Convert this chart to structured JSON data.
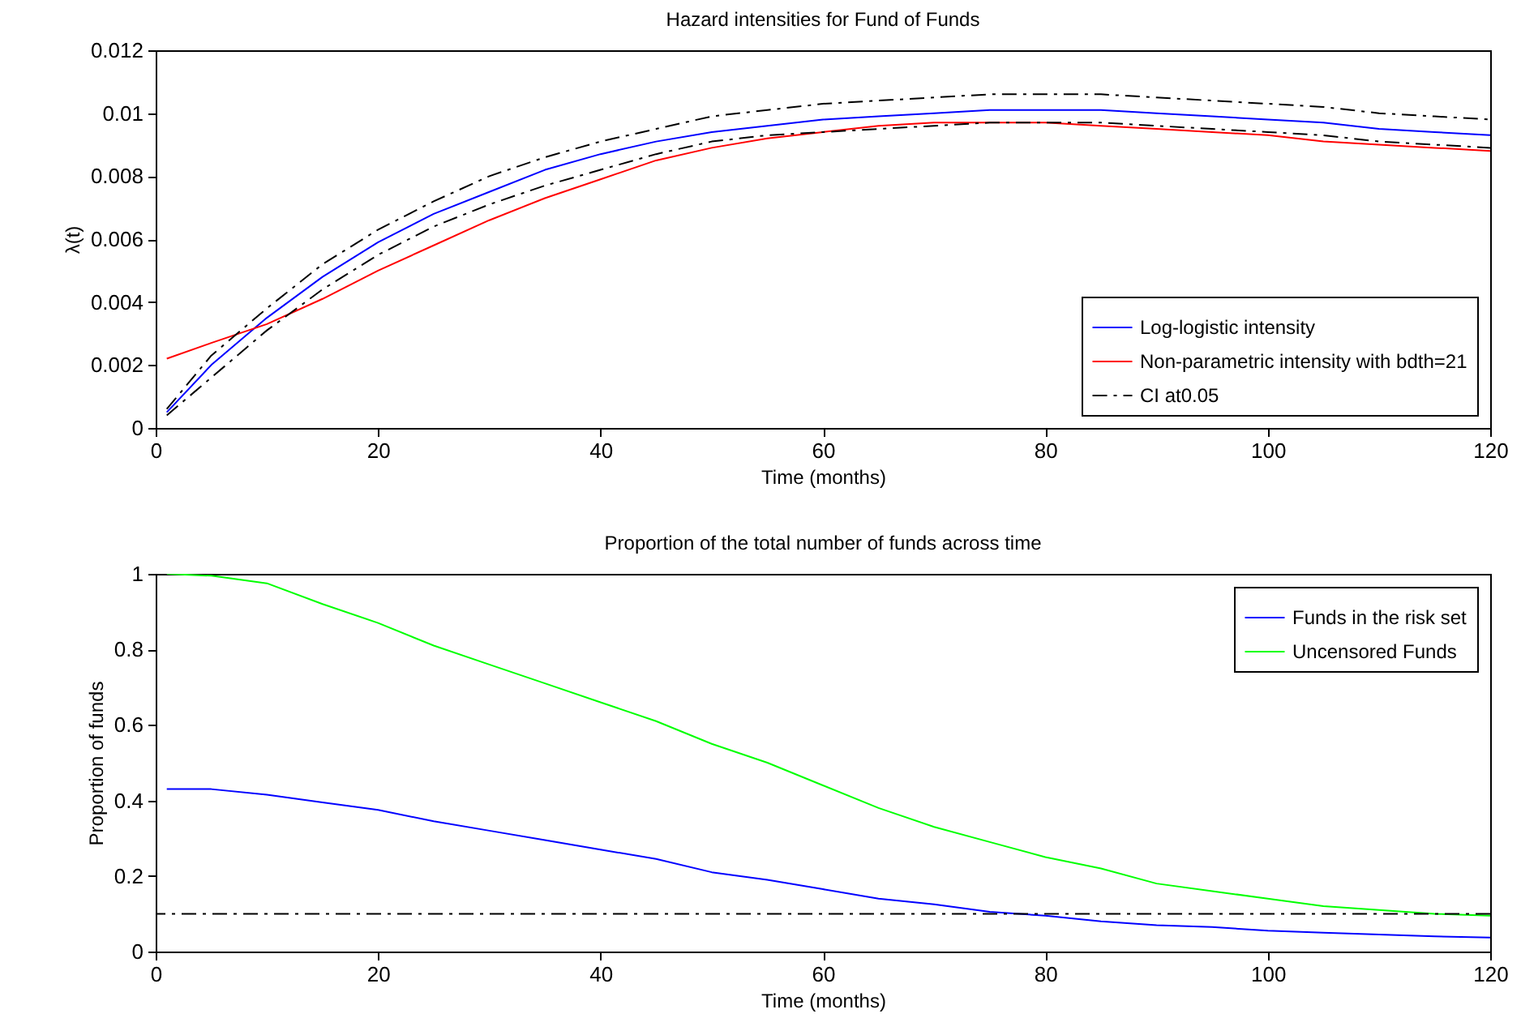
{
  "chart_data": [
    {
      "type": "line",
      "title": "Hazard intensities for Fund of Funds",
      "xlabel": "Time (months)",
      "ylabel": "λ(t)",
      "xlim": [
        0,
        120
      ],
      "xticks": [
        0,
        20,
        40,
        60,
        80,
        100,
        120
      ],
      "ylim": [
        0,
        0.012
      ],
      "yticks": [
        0,
        0.002,
        0.004,
        0.006,
        0.008,
        0.01,
        0.012
      ],
      "legend": "bottom right",
      "series": [
        {
          "name": "Log-logistic intensity",
          "color": "#0000ff",
          "line_style": "solid",
          "x": [
            1,
            5,
            10,
            15,
            20,
            25,
            30,
            35,
            40,
            45,
            50,
            55,
            60,
            65,
            70,
            75,
            80,
            85,
            90,
            95,
            100,
            105,
            110,
            115,
            120
          ],
          "values": [
            0.0005,
            0.002,
            0.0035,
            0.0048,
            0.0059,
            0.0068,
            0.0075,
            0.0082,
            0.0087,
            0.0091,
            0.0094,
            0.0096,
            0.0098,
            0.0099,
            0.01,
            0.0101,
            0.0101,
            0.0101,
            0.01,
            0.0099,
            0.0098,
            0.0097,
            0.0095,
            0.0094,
            0.0093
          ]
        },
        {
          "name": "Non-parametric intensity with bdth=21",
          "color": "#ff0000",
          "line_style": "solid",
          "x": [
            1,
            5,
            10,
            15,
            20,
            25,
            30,
            35,
            40,
            45,
            50,
            55,
            60,
            65,
            70,
            75,
            80,
            85,
            90,
            95,
            100,
            105,
            110,
            115,
            120
          ],
          "values": [
            0.0022,
            0.0027,
            0.0033,
            0.0041,
            0.005,
            0.0058,
            0.0066,
            0.0073,
            0.0079,
            0.0085,
            0.0089,
            0.0092,
            0.0094,
            0.0096,
            0.0097,
            0.0097,
            0.0097,
            0.0096,
            0.0095,
            0.0094,
            0.0093,
            0.0091,
            0.009,
            0.0089,
            0.0088
          ]
        },
        {
          "name": "CI at0.05",
          "color": "#000000",
          "line_style": "dashed",
          "x": [
            1,
            5,
            10,
            15,
            20,
            25,
            30,
            35,
            40,
            45,
            50,
            55,
            60,
            65,
            70,
            75,
            80,
            85,
            90,
            95,
            100,
            105,
            110,
            115,
            120
          ],
          "values": [
            0.0006,
            0.0023,
            0.0038,
            0.0052,
            0.0063,
            0.0072,
            0.008,
            0.0086,
            0.0091,
            0.0095,
            0.0099,
            0.0101,
            0.0103,
            0.0104,
            0.0105,
            0.0106,
            0.0106,
            0.0106,
            0.0105,
            0.0104,
            0.0103,
            0.0102,
            0.01,
            0.0099,
            0.0098
          ]
        },
        {
          "color": "#000000",
          "line_style": "dashed",
          "x": [
            1,
            5,
            10,
            15,
            20,
            25,
            30,
            35,
            40,
            45,
            50,
            55,
            60,
            65,
            70,
            75,
            80,
            85,
            90,
            95,
            100,
            105,
            110,
            115,
            120
          ],
          "values": [
            0.0004,
            0.0016,
            0.0031,
            0.0044,
            0.0055,
            0.0064,
            0.0071,
            0.0077,
            0.0082,
            0.0087,
            0.0091,
            0.0093,
            0.0094,
            0.0095,
            0.0096,
            0.0097,
            0.0097,
            0.0097,
            0.0096,
            0.0095,
            0.0094,
            0.0093,
            0.0091,
            0.009,
            0.0089
          ]
        }
      ]
    },
    {
      "type": "line",
      "title": "Proportion of the total number of funds across time",
      "xlabel": "Time (months)",
      "ylabel": "Proportion of funds",
      "xlim": [
        0,
        120
      ],
      "xticks": [
        0,
        20,
        40,
        60,
        80,
        100,
        120
      ],
      "ylim": [
        0,
        1
      ],
      "yticks": [
        0,
        0.2,
        0.4,
        0.6,
        0.8,
        1
      ],
      "legend": "top right",
      "ref_lines": [
        {
          "axis": "y",
          "value": 0.1,
          "color": "#000000",
          "line_style": "dashed"
        }
      ],
      "series": [
        {
          "name": "Funds in the risk set",
          "color": "#0000ff",
          "line_style": "solid",
          "x": [
            1,
            5,
            10,
            15,
            20,
            25,
            30,
            35,
            40,
            45,
            50,
            55,
            60,
            65,
            70,
            75,
            80,
            85,
            90,
            95,
            100,
            105,
            110,
            115,
            120
          ],
          "values": [
            0.43,
            0.43,
            0.415,
            0.395,
            0.375,
            0.345,
            0.32,
            0.295,
            0.27,
            0.245,
            0.21,
            0.19,
            0.165,
            0.14,
            0.125,
            0.105,
            0.095,
            0.08,
            0.07,
            0.065,
            0.055,
            0.05,
            0.045,
            0.04,
            0.037
          ]
        },
        {
          "name": "Uncensored Funds",
          "color": "#00ff00",
          "line_style": "solid",
          "x": [
            1,
            5,
            10,
            15,
            20,
            25,
            30,
            35,
            40,
            45,
            50,
            55,
            60,
            65,
            70,
            75,
            80,
            85,
            90,
            95,
            100,
            105,
            110,
            115,
            120
          ],
          "values": [
            1.0,
            0.995,
            0.975,
            0.92,
            0.87,
            0.81,
            0.76,
            0.71,
            0.66,
            0.61,
            0.55,
            0.5,
            0.44,
            0.38,
            0.33,
            0.29,
            0.25,
            0.22,
            0.18,
            0.16,
            0.14,
            0.12,
            0.11,
            0.1,
            0.095
          ]
        }
      ]
    }
  ]
}
